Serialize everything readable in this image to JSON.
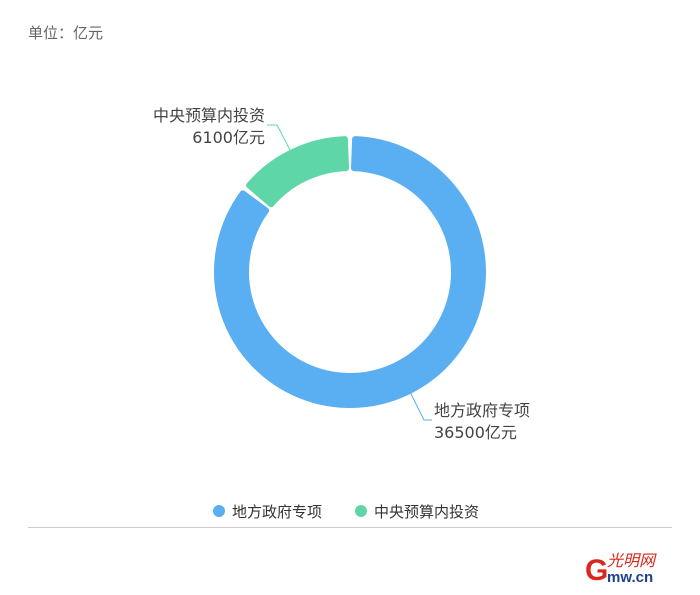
{
  "unit_label": "单位：亿元",
  "chart_data": {
    "type": "pie",
    "variant": "donut",
    "title": "",
    "series": [
      {
        "name": "地方政府专项",
        "value": 36500,
        "label_value": "36500亿元",
        "color": "#5aaef2"
      },
      {
        "name": "中央预算内投资",
        "value": 6100,
        "label_value": "6100亿元",
        "color": "#5fd6a8"
      }
    ],
    "legend_position": "bottom"
  },
  "logo": {
    "text": "光明网",
    "domain": "mw.cn",
    "letter": "G"
  }
}
